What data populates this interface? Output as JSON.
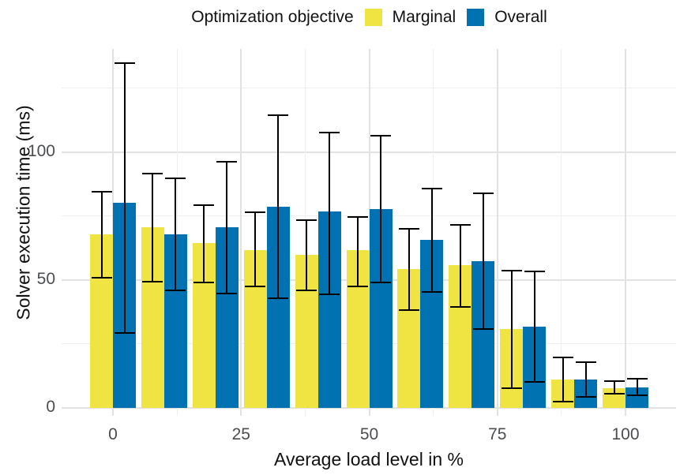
{
  "legend": {
    "title": "Optimization objective",
    "items": [
      {
        "label": "Marginal",
        "color": "#F0E442"
      },
      {
        "label": "Overall",
        "color": "#0072B2"
      }
    ]
  },
  "axes": {
    "x_title": "Average load level in %",
    "y_title": "Solver execution time (ms)"
  },
  "chart_data": {
    "type": "bar",
    "title": "",
    "subtitle": "",
    "xlabel": "Average load level in %",
    "ylabel": "Solver execution time (ms)",
    "legend_title": "Optimization objective",
    "legend_position": "top",
    "grid": true,
    "error_bars": true,
    "categories": [
      0,
      10,
      20,
      30,
      40,
      50,
      60,
      70,
      80,
      90,
      100
    ],
    "series": [
      {
        "name": "Marginal",
        "color": "#F0E442",
        "values": [
          67.8,
          70.6,
          64.4,
          61.8,
          59.8,
          61.8,
          54.3,
          55.9,
          30.9,
          11.2,
          7.8
        ],
        "error_low": [
          50.8,
          49.5,
          49.2,
          47.6,
          45.9,
          47.6,
          38.4,
          39.5,
          7.8,
          2.5,
          5.6
        ],
        "error_high": [
          84.7,
          91.7,
          79.3,
          76.4,
          73.4,
          74.7,
          70.1,
          71.6,
          53.8,
          19.8,
          10.4
        ]
      },
      {
        "name": "Overall",
        "color": "#0072B2",
        "values": [
          80.3,
          68.0,
          70.8,
          78.8,
          76.8,
          77.8,
          65.6,
          57.4,
          31.7,
          11.2,
          8.1
        ],
        "error_low": [
          29.4,
          45.9,
          44.7,
          42.8,
          44.5,
          49.0,
          45.4,
          31.0,
          10.1,
          4.4,
          4.9
        ],
        "error_high": [
          134.7,
          89.8,
          96.3,
          114.6,
          107.8,
          106.6,
          85.7,
          84.0,
          53.4,
          17.8,
          11.4
        ]
      }
    ],
    "ylim": [
      0,
      140
    ],
    "y_major_breaks": [
      0,
      50,
      100
    ],
    "y_minor_breaks": [
      25,
      75,
      125
    ],
    "x_major_breaks": [
      0,
      25,
      50,
      75,
      100
    ],
    "x_minor_breaks": [
      12.5,
      37.5,
      62.5,
      87.5
    ],
    "x_tick_labels": [
      "0",
      "25",
      "50",
      "75",
      "100"
    ],
    "y_tick_labels": [
      "0",
      "50",
      "100"
    ]
  },
  "colors": {
    "background": "#ffffff",
    "grid_major": "#e2e2e2",
    "grid_minor": "#efefef",
    "error_bar": "#000000",
    "tick_text": "#4b4d51",
    "title_text": "#111111"
  }
}
